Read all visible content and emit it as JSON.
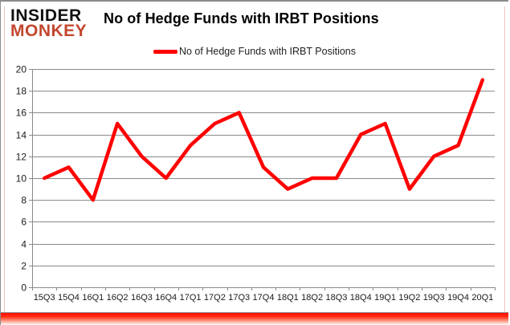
{
  "header": {
    "logo_line1": "INSIDER",
    "logo_line2": "MONKEY",
    "title": "No of Hedge Funds with IRBT Positions"
  },
  "legend": {
    "label": "No of Hedge Funds with IRBT Positions"
  },
  "colors": {
    "series_red": "#ff0000",
    "logo_red": "#c2472e",
    "grid_gray": "#8a8a8a",
    "label_dark": "#1a1a1a"
  },
  "chart_data": {
    "type": "line",
    "title": "No of Hedge Funds with IRBT Positions",
    "categories": [
      "15Q3",
      "15Q4",
      "16Q1",
      "16Q2",
      "16Q3",
      "16Q4",
      "17Q1",
      "17Q2",
      "17Q3",
      "17Q4",
      "18Q1",
      "18Q2",
      "18Q3",
      "18Q4",
      "19Q1",
      "19Q2",
      "19Q3",
      "19Q4",
      "20Q1"
    ],
    "series": [
      {
        "name": "No of Hedge Funds with IRBT Positions",
        "color": "#ff0000",
        "values": [
          10,
          11,
          8,
          15,
          12,
          10,
          13,
          15,
          16,
          11,
          9,
          10,
          10,
          14,
          15,
          9,
          12,
          13,
          19
        ]
      }
    ],
    "ylim": [
      0,
      20
    ],
    "ytick_step": 2,
    "grid": true,
    "legend_position": "top"
  }
}
